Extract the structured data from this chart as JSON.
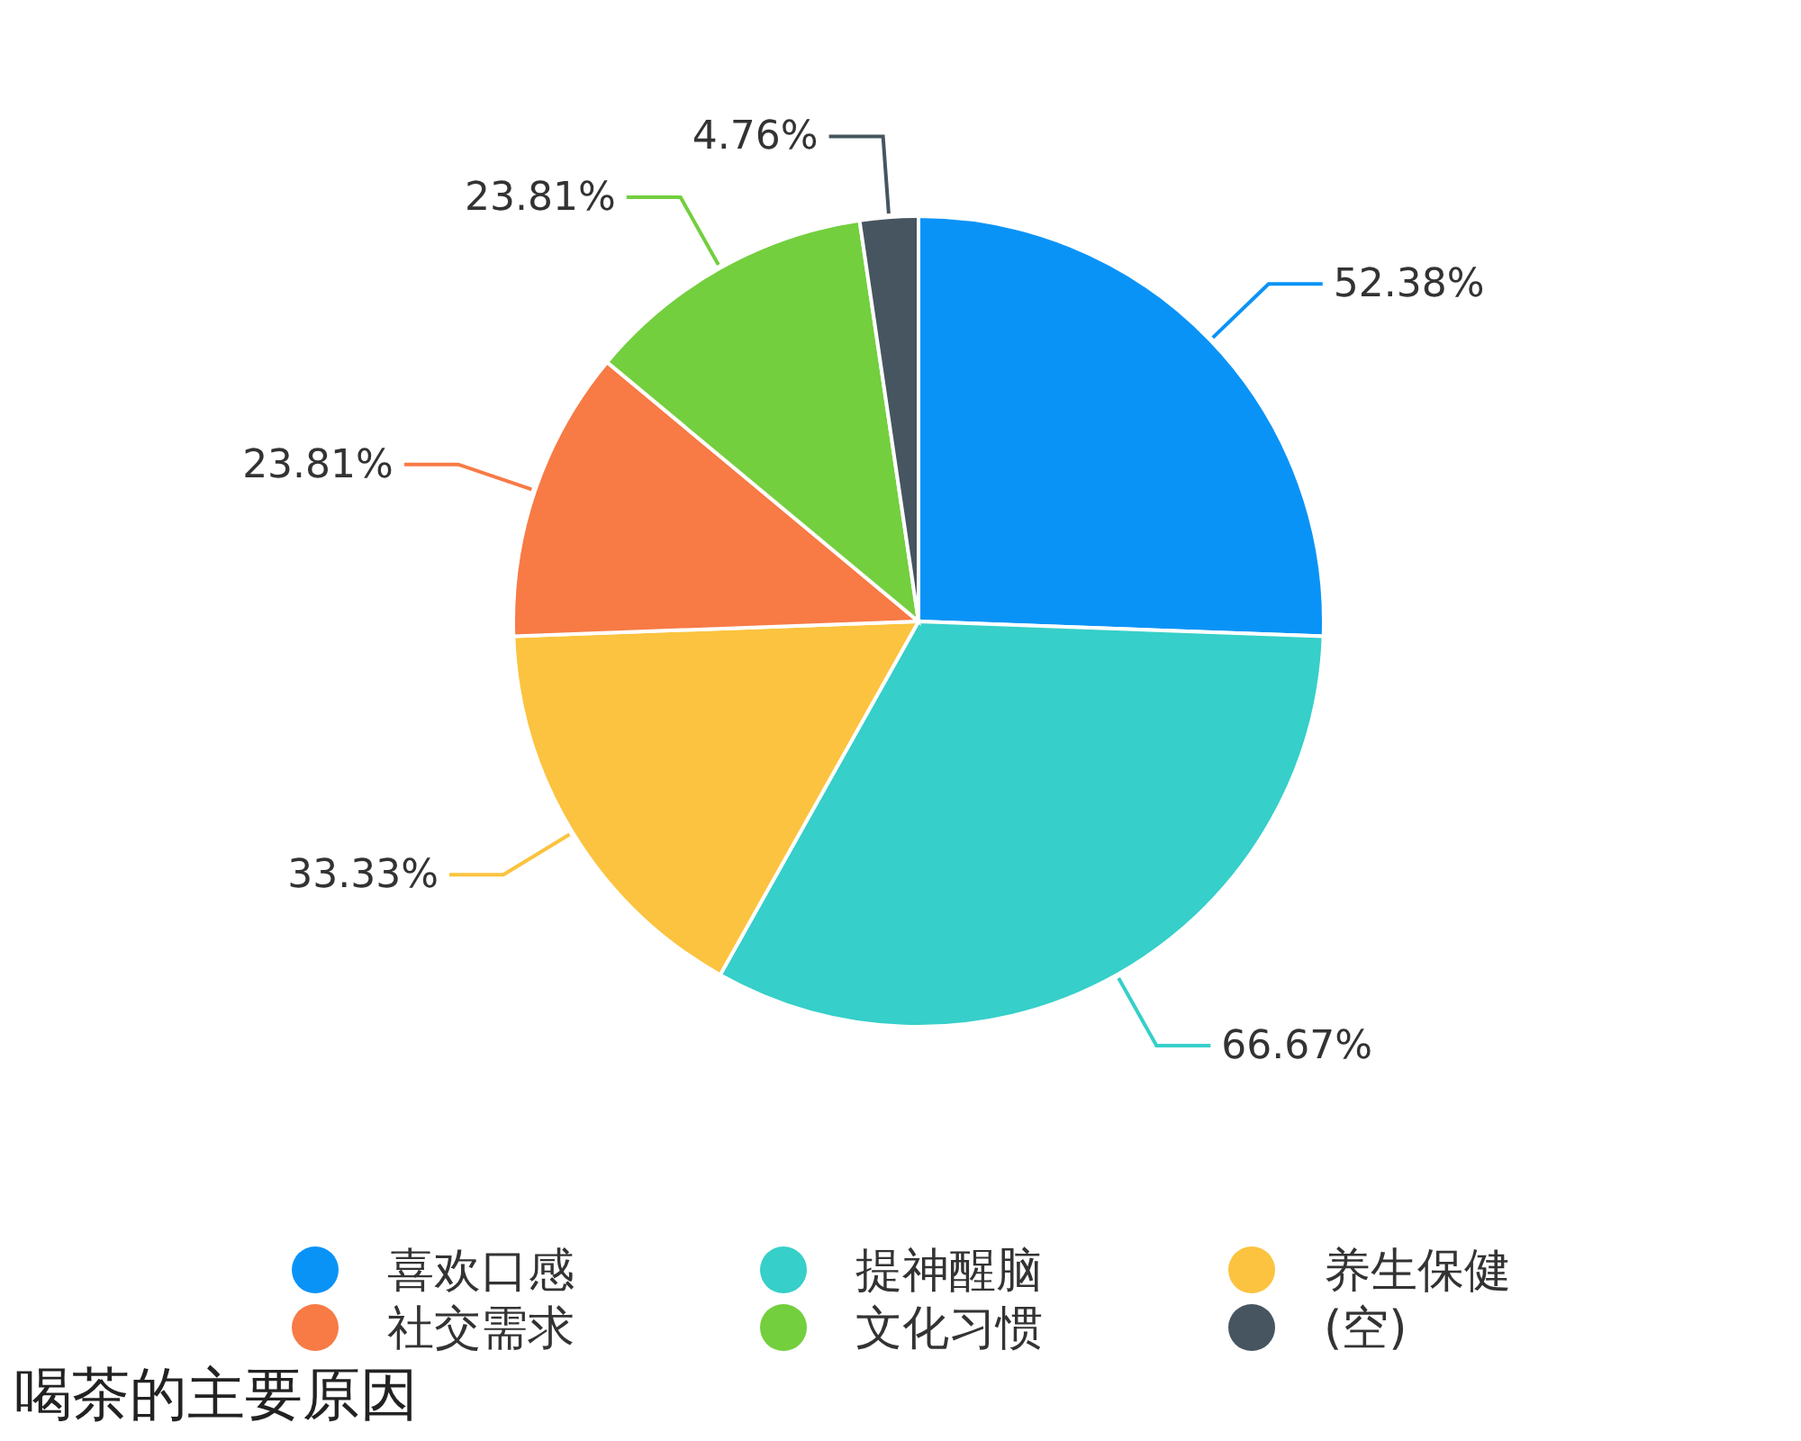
{
  "chart_data": {
    "type": "pie",
    "title": "喝茶的主要原因",
    "categories": [
      "喜欢口感",
      "提神醒脑",
      "养生保健",
      "社交需求",
      "文化习惯",
      "(空)"
    ],
    "values": [
      52.38,
      66.67,
      33.33,
      23.81,
      23.81,
      4.76
    ],
    "value_labels": [
      "52.38%",
      "66.67%",
      "33.33%",
      "23.81%",
      "23.81%",
      "4.76%"
    ],
    "colors": [
      "#0a93f7",
      "#36cfc9",
      "#fbc33f",
      "#f87a45",
      "#73cf3e",
      "#46555f"
    ],
    "legend": "bottom"
  }
}
